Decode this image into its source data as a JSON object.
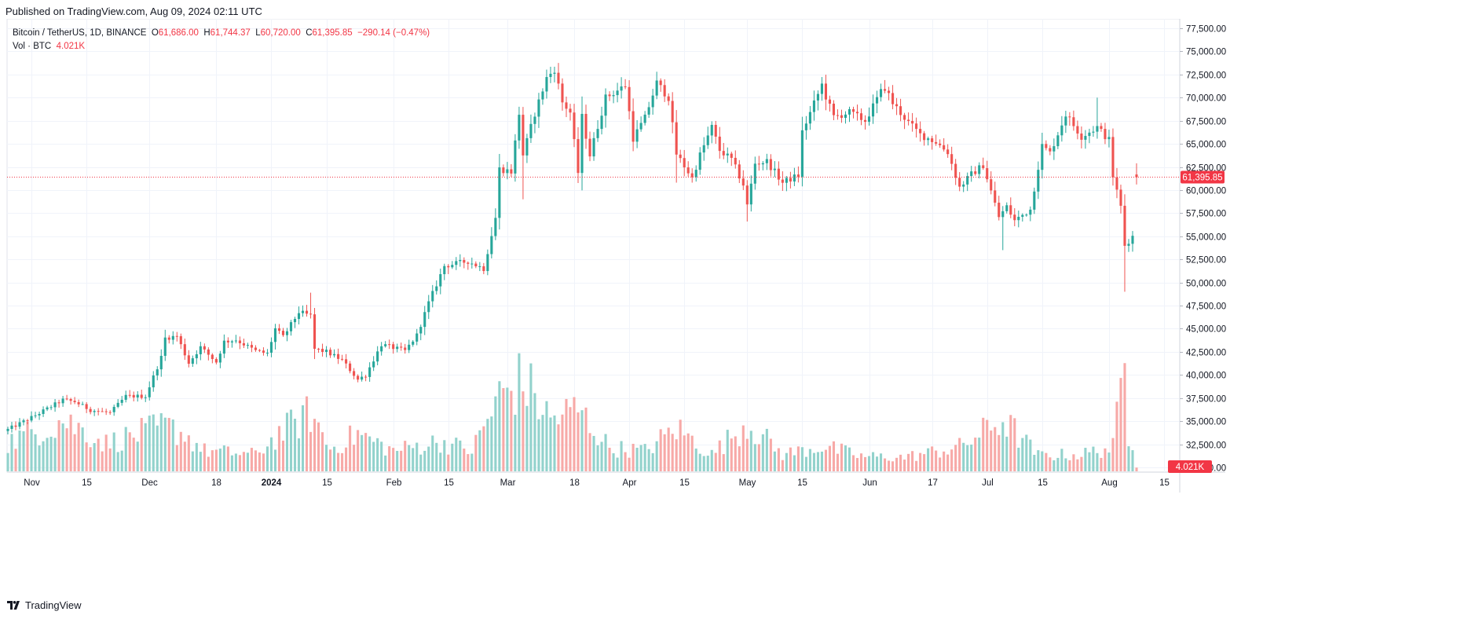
{
  "header": {
    "published": "Published on TradingView.com, Aug 09, 2024 02:11 UTC"
  },
  "legend": {
    "symbol": "Bitcoin / TetherUS, 1D, BINANCE",
    "o_label": "O",
    "o_value": "61,686.00",
    "h_label": "H",
    "h_value": "61,744.37",
    "l_label": "L",
    "l_value": "60,720.00",
    "c_label": "C",
    "c_value": "61,395.85",
    "change": "−290.14 (−0.47%)",
    "vol_label": "Vol · BTC",
    "vol_value": "4.021K"
  },
  "colors": {
    "up": "#26a69a",
    "down": "#ef5350",
    "up_vol": "#92d2cc",
    "down_vol": "#f7a9a7",
    "price_line": "#f23645"
  },
  "branding": {
    "icon": "tradingview-logo-icon",
    "label": "TradingView"
  },
  "chart_data": {
    "type": "candlestick",
    "title": "Bitcoin / TetherUS, 1D, BINANCE",
    "x_range": [
      "2023-10-26",
      "2024-08-08"
    ],
    "ylim": [
      29500,
      78500
    ],
    "y_ticks": [
      30000,
      32500,
      35000,
      37500,
      40000,
      42500,
      45000,
      47500,
      50000,
      52500,
      55000,
      57500,
      60000,
      62500,
      65000,
      67500,
      70000,
      72500,
      75000,
      77500
    ],
    "y_tick_labels": [
      "30,000.00",
      "32,500.00",
      "35,000.00",
      "37,500.00",
      "40,000.00",
      "42,500.00",
      "45,000.00",
      "47,500.00",
      "50,000.00",
      "52,500.00",
      "55,000.00",
      "57,500.00",
      "60,000.00",
      "62,500.00",
      "65,000.00",
      "67,500.00",
      "70,000.00",
      "72,500.00",
      "75,000.00",
      "77,500.00"
    ],
    "x_ticks": [
      {
        "date": "2023-11-01",
        "label": "Nov",
        "bold": false
      },
      {
        "date": "2023-11-15",
        "label": "15",
        "bold": false
      },
      {
        "date": "2023-12-01",
        "label": "Dec",
        "bold": false
      },
      {
        "date": "2023-12-18",
        "label": "18",
        "bold": false
      },
      {
        "date": "2024-01-01",
        "label": "2024",
        "bold": true
      },
      {
        "date": "2024-01-15",
        "label": "15",
        "bold": false
      },
      {
        "date": "2024-02-01",
        "label": "Feb",
        "bold": false
      },
      {
        "date": "2024-02-15",
        "label": "15",
        "bold": false
      },
      {
        "date": "2024-03-01",
        "label": "Mar",
        "bold": false
      },
      {
        "date": "2024-03-18",
        "label": "18",
        "bold": false
      },
      {
        "date": "2024-04-01",
        "label": "Apr",
        "bold": false
      },
      {
        "date": "2024-04-15",
        "label": "15",
        "bold": false
      },
      {
        "date": "2024-05-01",
        "label": "May",
        "bold": false
      },
      {
        "date": "2024-05-15",
        "label": "15",
        "bold": false
      },
      {
        "date": "2024-06-01",
        "label": "Jun",
        "bold": false
      },
      {
        "date": "2024-06-17",
        "label": "17",
        "bold": false
      },
      {
        "date": "2024-07-01",
        "label": "Jul",
        "bold": false
      },
      {
        "date": "2024-07-15",
        "label": "15",
        "bold": false
      },
      {
        "date": "2024-08-01",
        "label": "Aug",
        "bold": false
      },
      {
        "date": "2024-08-15",
        "label": "15",
        "bold": false
      }
    ],
    "close_path": [
      [
        "2023-10-26",
        34100
      ],
      [
        "2023-11-01",
        35400
      ],
      [
        "2023-11-09",
        37300
      ],
      [
        "2023-11-12",
        37100
      ],
      [
        "2023-11-16",
        36200
      ],
      [
        "2023-11-21",
        35900
      ],
      [
        "2023-11-25",
        37700
      ],
      [
        "2023-11-30",
        37700
      ],
      [
        "2023-12-04",
        41900
      ],
      [
        "2023-12-05",
        44000
      ],
      [
        "2023-12-08",
        44200
      ],
      [
        "2023-12-11",
        41300
      ],
      [
        "2023-12-14",
        43000
      ],
      [
        "2023-12-18",
        41400
      ],
      [
        "2023-12-20",
        43600
      ],
      [
        "2023-12-23",
        43800
      ],
      [
        "2023-12-28",
        42600
      ],
      [
        "2023-12-31",
        42300
      ],
      [
        "2024-01-02",
        45000
      ],
      [
        "2024-01-04",
        44100
      ],
      [
        "2024-01-08",
        46800
      ],
      [
        "2024-01-11",
        46400
      ],
      [
        "2024-01-12",
        42800
      ],
      [
        "2024-01-15",
        42500
      ],
      [
        "2024-01-19",
        41600
      ],
      [
        "2024-01-23",
        39500
      ],
      [
        "2024-01-25",
        40000
      ],
      [
        "2024-01-29",
        43300
      ],
      [
        "2024-02-04",
        42600
      ],
      [
        "2024-02-07",
        44300
      ],
      [
        "2024-02-10",
        47800
      ],
      [
        "2024-02-14",
        51800
      ],
      [
        "2024-02-20",
        52300
      ],
      [
        "2024-02-24",
        51500
      ],
      [
        "2024-02-27",
        57000
      ],
      [
        "2024-02-28",
        62300
      ],
      [
        "2024-03-02",
        62000
      ],
      [
        "2024-03-04",
        68300
      ],
      [
        "2024-03-05",
        63800
      ],
      [
        "2024-03-08",
        68300
      ],
      [
        "2024-03-11",
        72100
      ],
      [
        "2024-03-13",
        73100
      ],
      [
        "2024-03-15",
        69500
      ],
      [
        "2024-03-17",
        68400
      ],
      [
        "2024-03-19",
        61900
      ],
      [
        "2024-03-20",
        67900
      ],
      [
        "2024-03-22",
        63800
      ],
      [
        "2024-03-26",
        70000
      ],
      [
        "2024-03-31",
        71300
      ],
      [
        "2024-04-02",
        65600
      ],
      [
        "2024-04-05",
        67800
      ],
      [
        "2024-04-08",
        71600
      ],
      [
        "2024-04-11",
        70000
      ],
      [
        "2024-04-13",
        63900
      ],
      [
        "2024-04-17",
        61300
      ],
      [
        "2024-04-19",
        63800
      ],
      [
        "2024-04-22",
        66800
      ],
      [
        "2024-04-24",
        64300
      ],
      [
        "2024-04-27",
        63300
      ],
      [
        "2024-04-30",
        60600
      ],
      [
        "2024-05-01",
        58300
      ],
      [
        "2024-05-03",
        62900
      ],
      [
        "2024-05-06",
        63100
      ],
      [
        "2024-05-10",
        60800
      ],
      [
        "2024-05-14",
        61600
      ],
      [
        "2024-05-15",
        66300
      ],
      [
        "2024-05-20",
        71400
      ],
      [
        "2024-05-21",
        70100
      ],
      [
        "2024-05-23",
        67900
      ],
      [
        "2024-05-27",
        68400
      ],
      [
        "2024-05-31",
        67500
      ],
      [
        "2024-06-04",
        70600
      ],
      [
        "2024-06-05",
        71100
      ],
      [
        "2024-06-07",
        69400
      ],
      [
        "2024-06-11",
        67300
      ],
      [
        "2024-06-14",
        66000
      ],
      [
        "2024-06-18",
        65200
      ],
      [
        "2024-06-21",
        64100
      ],
      [
        "2024-06-24",
        60300
      ],
      [
        "2024-06-27",
        61700
      ],
      [
        "2024-06-30",
        62700
      ],
      [
        "2024-07-04",
        57100
      ],
      [
        "2024-07-06",
        58200
      ],
      [
        "2024-07-08",
        56700
      ],
      [
        "2024-07-12",
        57900
      ],
      [
        "2024-07-15",
        64800
      ],
      [
        "2024-07-17",
        64000
      ],
      [
        "2024-07-21",
        68200
      ],
      [
        "2024-07-25",
        65800
      ],
      [
        "2024-07-29",
        66800
      ],
      [
        "2024-08-01",
        65400
      ],
      [
        "2024-08-02",
        61500
      ],
      [
        "2024-08-04",
        58200
      ],
      [
        "2024-08-05",
        54000
      ],
      [
        "2024-08-07",
        55000
      ],
      [
        "2024-08-08",
        61396
      ]
    ],
    "volume_path": [
      [
        "2023-10-26",
        31000
      ],
      [
        "2023-11-09",
        55000
      ],
      [
        "2023-11-20",
        30000
      ],
      [
        "2023-12-05",
        48000
      ],
      [
        "2023-12-09",
        42000
      ],
      [
        "2023-12-15",
        22000
      ],
      [
        "2023-12-28",
        18000
      ],
      [
        "2024-01-03",
        40000
      ],
      [
        "2024-01-11",
        62000
      ],
      [
        "2024-01-16",
        24000
      ],
      [
        "2024-01-23",
        40000
      ],
      [
        "2024-02-01",
        22000
      ],
      [
        "2024-02-13",
        32000
      ],
      [
        "2024-02-21",
        22000
      ],
      [
        "2024-02-28",
        80000
      ],
      [
        "2024-03-05",
        97000
      ],
      [
        "2024-03-12",
        55000
      ],
      [
        "2024-03-19",
        66000
      ],
      [
        "2024-03-27",
        25000
      ],
      [
        "2024-04-05",
        22000
      ],
      [
        "2024-04-13",
        46000
      ],
      [
        "2024-04-22",
        18000
      ],
      [
        "2024-05-01",
        52000
      ],
      [
        "2024-05-10",
        18000
      ],
      [
        "2024-05-20",
        27000
      ],
      [
        "2024-05-30",
        16000
      ],
      [
        "2024-06-10",
        15000
      ],
      [
        "2024-06-24",
        26000
      ],
      [
        "2024-07-05",
        55000
      ],
      [
        "2024-07-14",
        17000
      ],
      [
        "2024-07-25",
        18000
      ],
      [
        "2024-08-02",
        26000
      ],
      [
        "2024-08-05",
        112000
      ],
      [
        "2024-08-06",
        40000
      ],
      [
        "2024-08-07",
        35000
      ],
      [
        "2024-08-08",
        4021
      ]
    ],
    "volume_ylim": [
      0,
      125000
    ],
    "last": {
      "open": 61686.0,
      "high": 61744.37,
      "low": 60720.0,
      "close": 61395.85
    },
    "last_price_label": "61,395.85",
    "last_volume_label": "4.021K",
    "grid": true
  }
}
